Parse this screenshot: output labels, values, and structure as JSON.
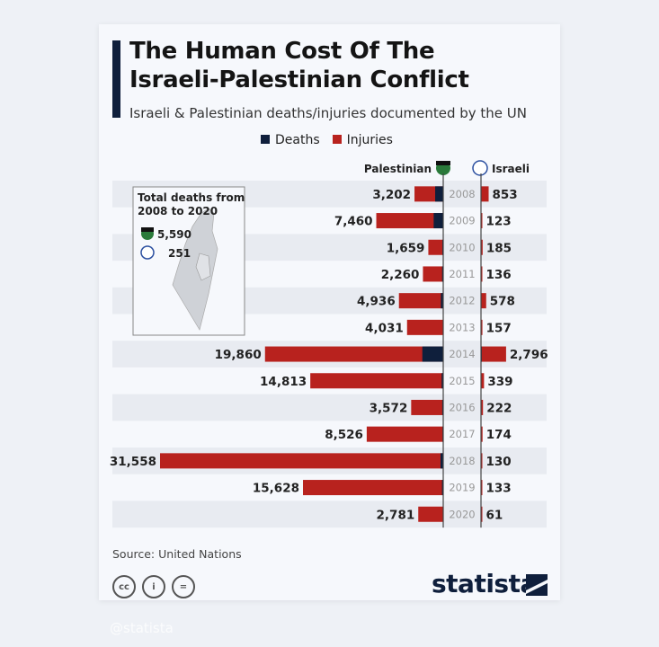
{
  "header": {
    "title_line1": "The Human Cost Of The",
    "title_line2": "Israeli-Palestinian Conflict",
    "subtitle": "Israeli & Palestinian deaths/injuries documented by the UN"
  },
  "colors": {
    "deaths": "#0f1f3c",
    "injuries": "#b8221e",
    "band": "#e8ebf1"
  },
  "inset": {
    "title_line1": "Total deaths from",
    "title_line2": "2008 to 2020",
    "palestinian_total": "5,590",
    "israeli_total": "251"
  },
  "chart_data": {
    "type": "bar",
    "title": "The Human Cost Of The Israeli-Palestinian Conflict",
    "subtitle": "Israeli & Palestinian deaths/injuries documented by the UN",
    "legend": [
      "Deaths",
      "Injuries"
    ],
    "legend_position": "top",
    "side_labels": {
      "left": "Palestinian",
      "right": "Israeli"
    },
    "categories": [
      "2008",
      "2009",
      "2010",
      "2011",
      "2012",
      "2013",
      "2014",
      "2015",
      "2016",
      "2017",
      "2018",
      "2019",
      "2020"
    ],
    "palestinian_labels": [
      "3,202",
      "7,460",
      "1,659",
      "2,260",
      "4,936",
      "4,031",
      "19,860",
      "14,813",
      "3,572",
      "8,526",
      "31,558",
      "15,628",
      "2,781"
    ],
    "palestinian_values": [
      3202,
      7460,
      1659,
      2260,
      4936,
      4031,
      19860,
      14813,
      3572,
      8526,
      31558,
      15628,
      2781
    ],
    "palestinian_deaths_est": [
      899,
      1066,
      95,
      124,
      260,
      39,
      2329,
      174,
      109,
      77,
      300,
      135,
      30
    ],
    "israeli_labels": [
      "853",
      "123",
      "185",
      "136",
      "578",
      "157",
      "2,796",
      "339",
      "222",
      "174",
      "130",
      "133",
      "61"
    ],
    "israeli_values": [
      853,
      123,
      185,
      136,
      578,
      157,
      2796,
      339,
      222,
      174,
      130,
      133,
      61
    ],
    "israeli_deaths_est": [
      35,
      9,
      9,
      11,
      7,
      6,
      87,
      25,
      13,
      15,
      14,
      10,
      3
    ]
  },
  "footer": {
    "source": "Source: United Nations",
    "brand": "statista",
    "cc": [
      "cc",
      "i",
      "="
    ],
    "watermark": "@statista"
  }
}
